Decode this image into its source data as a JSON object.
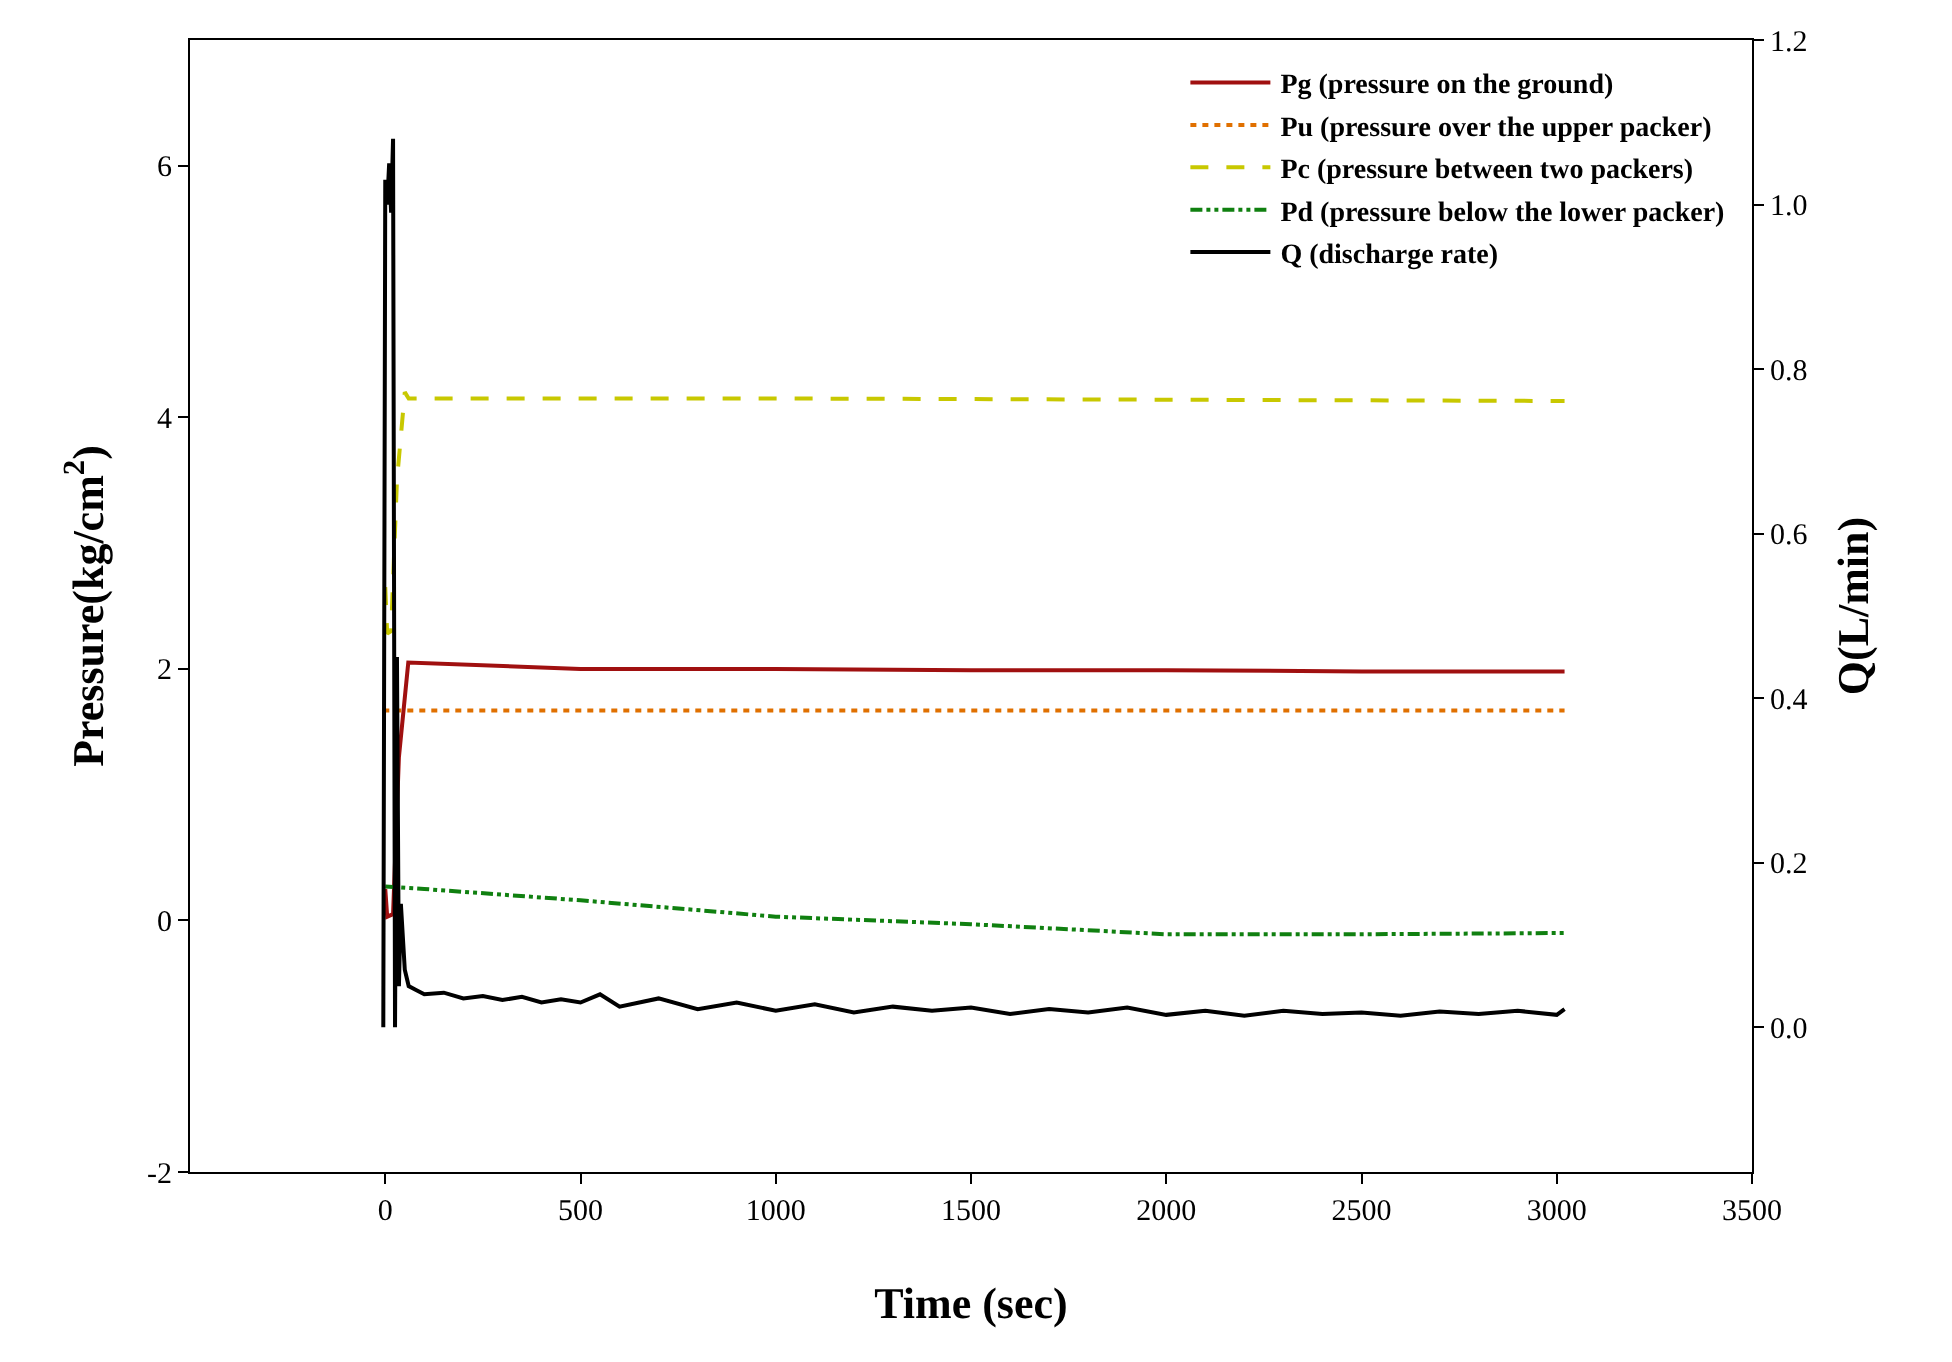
{
  "chart_data": {
    "type": "line",
    "xlabel": "Time (sec)",
    "ylabel": "Pressure(kg/cm$^{2}$)",
    "y2label": "Q(L/min)",
    "xlim": [
      -500,
      3500
    ],
    "xticks": [
      0,
      500,
      1000,
      1500,
      2000,
      2500,
      3000,
      3500
    ],
    "ylim": [
      -2,
      7
    ],
    "yticks": [
      -2,
      0,
      2,
      4,
      6
    ],
    "y2lim": [
      -0.176,
      1.2
    ],
    "y2ticks": [
      {
        "value": 0,
        "label": "0.0"
      },
      0.2,
      0.4,
      0.6,
      0.8,
      {
        "value": 1,
        "label": "1.0"
      },
      1.2
    ],
    "legend": "top right",
    "marker": "none",
    "series": [
      {
        "name": "Pg (pressure on the ground)",
        "color": "#a01010",
        "line_style": "solid",
        "x": [
          0,
          5,
          20,
          35,
          59,
          500,
          1000,
          1500,
          2000,
          2500,
          3020
        ],
        "values": [
          0.25,
          0.03,
          0.05,
          1.3,
          2.05,
          2.0,
          2.0,
          1.99,
          1.99,
          1.98,
          1.98
        ]
      },
      {
        "name": "Pu (pressure over the upper packer)",
        "color": "#e07000",
        "line_style": "dotted",
        "x": [
          -5,
          500,
          1000,
          2000,
          3020
        ],
        "values": [
          1.67,
          1.67,
          1.67,
          1.67,
          1.67
        ]
      },
      {
        "name": "Pc (pressure between two packers)",
        "color": "#c8c800",
        "line_style": "dashed",
        "x": [
          0,
          5,
          15,
          30,
          50,
          60,
          500,
          1000,
          2000,
          3020
        ],
        "values": [
          2.65,
          2.28,
          2.3,
          3.5,
          4.2,
          4.15,
          4.15,
          4.15,
          4.14,
          4.13
        ]
      },
      {
        "name": "Pd (pressure below the lower packer)",
        "color": "#108010",
        "line_style": "dashdot",
        "x": [
          0,
          100,
          500,
          1000,
          1500,
          2000,
          2500,
          3020
        ],
        "values": [
          0.27,
          0.25,
          0.16,
          0.03,
          -0.03,
          -0.11,
          -0.11,
          -0.1
        ]
      },
      {
        "name": "Q (discharge rate)",
        "color": "#000000",
        "line_style": "solid",
        "axis": "y2",
        "x": [
          -5,
          0,
          5,
          10,
          15,
          20,
          25,
          30,
          35,
          40,
          50,
          60,
          80,
          100,
          150,
          200,
          250,
          300,
          350,
          400,
          450,
          500,
          550,
          600,
          700,
          800,
          900,
          1000,
          1100,
          1200,
          1300,
          1400,
          1500,
          1600,
          1700,
          1800,
          1900,
          2000,
          2100,
          2200,
          2300,
          2400,
          2500,
          2600,
          2700,
          2800,
          2900,
          3000,
          3020
        ],
        "values": [
          0.0,
          1.03,
          1.0,
          1.05,
          0.99,
          1.08,
          0.0,
          0.45,
          0.05,
          0.15,
          0.07,
          0.05,
          0.045,
          0.04,
          0.042,
          0.035,
          0.038,
          0.033,
          0.037,
          0.03,
          0.034,
          0.03,
          0.04,
          0.025,
          0.035,
          0.022,
          0.03,
          0.02,
          0.028,
          0.018,
          0.025,
          0.02,
          0.024,
          0.016,
          0.022,
          0.018,
          0.024,
          0.015,
          0.02,
          0.014,
          0.02,
          0.016,
          0.018,
          0.014,
          0.019,
          0.016,
          0.02,
          0.015,
          0.022
        ]
      }
    ]
  }
}
